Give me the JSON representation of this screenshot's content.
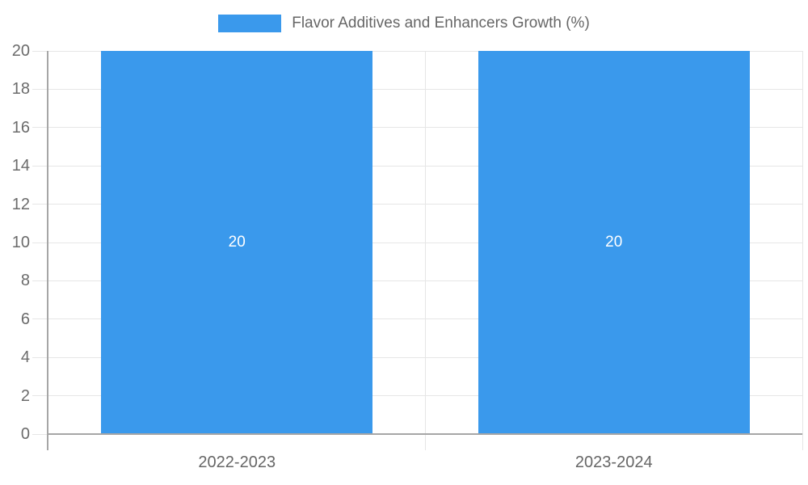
{
  "legend": {
    "label": "Flavor Additives and Enhancers Growth (%)"
  },
  "chart_data": {
    "type": "bar",
    "title": "",
    "xlabel": "",
    "ylabel": "",
    "categories": [
      "2022-2023",
      "2023-2024"
    ],
    "series": [
      {
        "name": "Flavor Additives and Enhancers Growth (%)",
        "values": [
          20,
          20
        ]
      }
    ],
    "values": [
      20,
      20
    ],
    "bar_value_labels": [
      "20",
      "20"
    ],
    "ylim": [
      0,
      20
    ],
    "yticks": [
      0,
      2,
      4,
      6,
      8,
      10,
      12,
      14,
      16,
      18,
      20
    ],
    "grid": true,
    "legend_position": "top",
    "bar_color": "#3a99ec",
    "bar_label_color": "#ffffff",
    "axis_line_color": "#a6a6a6",
    "gridline_color": "#e6e6e6",
    "tick_text_color": "#666666"
  }
}
